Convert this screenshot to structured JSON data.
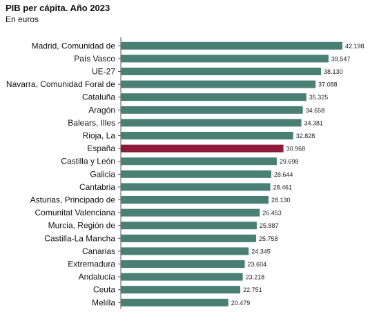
{
  "chart_data": {
    "type": "bar",
    "orientation": "horizontal",
    "title": "PIB per cápita. Año 2023",
    "subtitle": "En euros",
    "categories": [
      "Madrid, Comunidad de",
      "País Vasco",
      "UE-27",
      "Navarra, Comunidad Foral de",
      "Cataluña",
      "Aragón",
      "Balears, Illes",
      "Rioja, La",
      "España",
      "Castilla y León",
      "Galicia",
      "Cantabria",
      "Asturias, Principado de",
      "Comunitat Valenciana",
      "Murcia, Región de",
      "Castilla-La Mancha",
      "Canarias",
      "Extremadura",
      "Andalucía",
      "Ceuta",
      "Melilla"
    ],
    "values": [
      42198,
      39547,
      38130,
      37088,
      35325,
      34658,
      34381,
      32828,
      30968,
      29698,
      28644,
      28461,
      28130,
      26453,
      25887,
      25758,
      24345,
      23604,
      23218,
      22751,
      20479
    ],
    "value_labels": [
      "42.198",
      "39.547",
      "38.130",
      "37.088",
      "35.325",
      "34.658",
      "34.381",
      "32.828",
      "30.968",
      "29.698",
      "28.644",
      "28.461",
      "28.130",
      "26.453",
      "25.887",
      "25.758",
      "24.345",
      "23.604",
      "23.218",
      "22.751",
      "20.479"
    ],
    "highlight_category": "España",
    "colors": {
      "bar": "#4a7f73",
      "highlight": "#8c1c3a"
    }
  }
}
